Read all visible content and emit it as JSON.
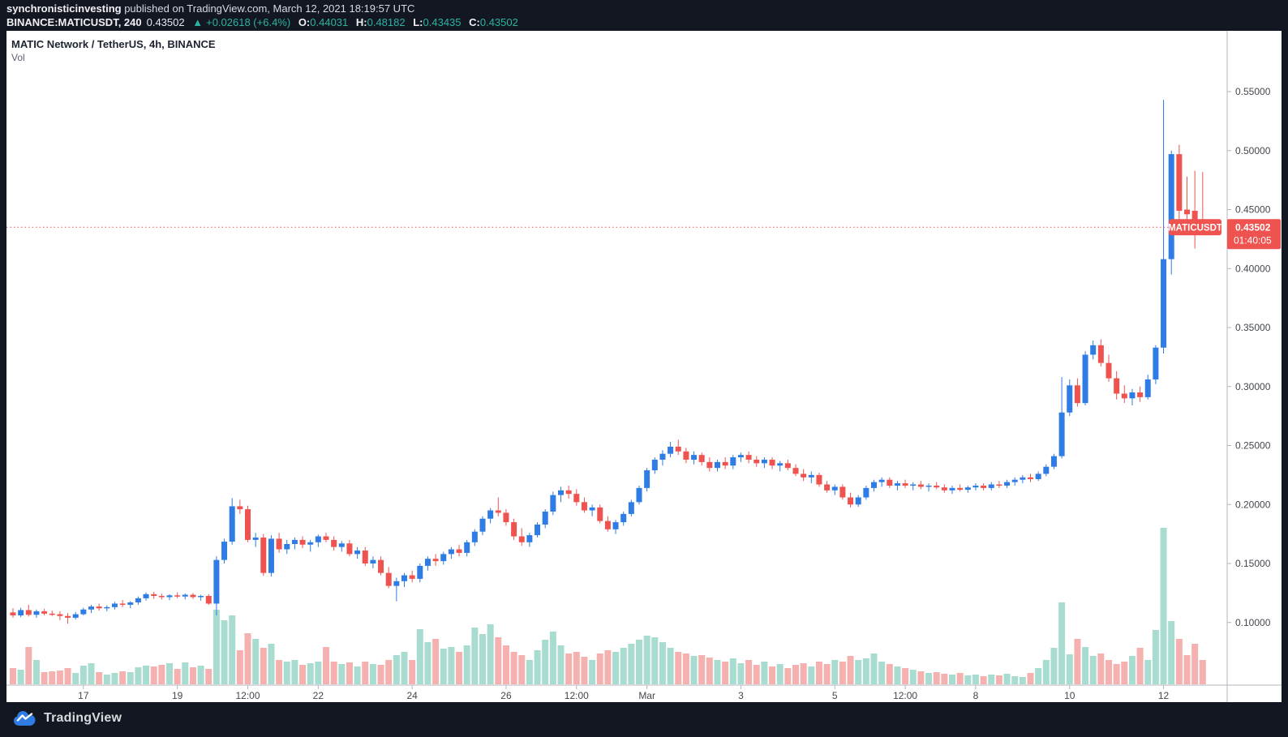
{
  "attribution": {
    "author": "synchronisticinvesting",
    "rest": " published on TradingView.com, March 12, 2021 18:19:57 UTC"
  },
  "symbol_bar": {
    "symbol": "BINANCE:MATICUSDT, 240",
    "last": "0.43502",
    "arrow": "▲",
    "change": "+0.02618 (+6.4%)",
    "o_label": "O:",
    "o": "0.44031",
    "h_label": "H:",
    "h": "0.48182",
    "l_label": "L:",
    "l": "0.43435",
    "c_label": "C:",
    "c": "0.43502"
  },
  "legend": {
    "title": "MATIC Network / TetherUS, 4h, BINANCE",
    "indicator": "Vol"
  },
  "price_label": {
    "symbol": "MATICUSDT",
    "price": "0.43502",
    "countdown": "01:40:05"
  },
  "footer": {
    "brand": "TradingView"
  },
  "colors": {
    "bg": "#131722",
    "panel": "#ffffff",
    "up": "#2e7ce4",
    "down": "#ef5350",
    "vol_up": "#a8dcd1",
    "vol_down": "#f5b1af",
    "accent_teal": "#2bb3a2",
    "axis_text": "#44474f",
    "axis_line": "#b2b5be",
    "last_price_line": "#ef5350",
    "label_bg": "#ef5350",
    "label_text": "#ffffff"
  },
  "chart_data": {
    "type": "candlestick",
    "symbol": "MATICUSDT",
    "exchange": "BINANCE",
    "interval": "4h",
    "legend_title": "MATIC Network / TetherUS, 4h, BINANCE",
    "grid": false,
    "last_price": 0.43502,
    "price_axis": {
      "side": "right",
      "format_decimals": 5,
      "ticks": [
        0.55,
        0.5,
        0.45,
        0.4,
        0.35,
        0.3,
        0.25,
        0.2,
        0.15,
        0.1
      ],
      "range_top": 0.57,
      "range_bottom": 0.065
    },
    "time_axis": {
      "labels": [
        {
          "text": "17",
          "i": 9
        },
        {
          "text": "19",
          "i": 21
        },
        {
          "text": "12:00",
          "i": 30
        },
        {
          "text": "22",
          "i": 39
        },
        {
          "text": "24",
          "i": 51
        },
        {
          "text": "26",
          "i": 63
        },
        {
          "text": "12:00",
          "i": 72
        },
        {
          "text": "Mar",
          "i": 81
        },
        {
          "text": "3",
          "i": 93
        },
        {
          "text": "5",
          "i": 105
        },
        {
          "text": "12:00",
          "i": 114
        },
        {
          "text": "8",
          "i": 123
        },
        {
          "text": "10",
          "i": 135
        },
        {
          "text": "12",
          "i": 147
        }
      ],
      "start": "Feb 15 2021 12:00 UTC",
      "end": "Mar 12 2021 16:00 UTC"
    },
    "volume_units": "relative",
    "candles_format": [
      "open",
      "high",
      "low",
      "close",
      "volume"
    ],
    "candles": [
      [
        0.1085,
        0.112,
        0.104,
        0.106,
        20
      ],
      [
        0.106,
        0.1125,
        0.1045,
        0.1105,
        18
      ],
      [
        0.1105,
        0.115,
        0.105,
        0.1065,
        46
      ],
      [
        0.1065,
        0.111,
        0.104,
        0.1095,
        30
      ],
      [
        0.1095,
        0.1115,
        0.106,
        0.1075,
        15
      ],
      [
        0.1075,
        0.11,
        0.1055,
        0.107,
        16
      ],
      [
        0.107,
        0.1095,
        0.102,
        0.1055,
        17
      ],
      [
        0.1055,
        0.108,
        0.099,
        0.104,
        20
      ],
      [
        0.104,
        0.109,
        0.1025,
        0.107,
        14
      ],
      [
        0.107,
        0.1125,
        0.106,
        0.111,
        23
      ],
      [
        0.111,
        0.115,
        0.108,
        0.1135,
        26
      ],
      [
        0.1135,
        0.116,
        0.11,
        0.112,
        15
      ],
      [
        0.112,
        0.1145,
        0.1095,
        0.113,
        12
      ],
      [
        0.113,
        0.1175,
        0.111,
        0.116,
        14
      ],
      [
        0.116,
        0.119,
        0.113,
        0.115,
        16
      ],
      [
        0.115,
        0.118,
        0.112,
        0.117,
        15
      ],
      [
        0.117,
        0.122,
        0.115,
        0.1205,
        21
      ],
      [
        0.1205,
        0.1255,
        0.1185,
        0.124,
        23
      ],
      [
        0.124,
        0.126,
        0.12,
        0.1225,
        22
      ],
      [
        0.1225,
        0.1245,
        0.1195,
        0.1215,
        24
      ],
      [
        0.1215,
        0.124,
        0.119,
        0.123,
        26
      ],
      [
        0.123,
        0.1255,
        0.1205,
        0.122,
        19
      ],
      [
        0.122,
        0.1245,
        0.1195,
        0.1235,
        27
      ],
      [
        0.1235,
        0.125,
        0.12,
        0.1215,
        21
      ],
      [
        0.1215,
        0.1235,
        0.1185,
        0.1225,
        23
      ],
      [
        0.1225,
        0.124,
        0.115,
        0.116,
        19
      ],
      [
        0.116,
        0.156,
        0.106,
        0.153,
        92
      ],
      [
        0.153,
        0.171,
        0.15,
        0.1685,
        79
      ],
      [
        0.1685,
        0.2055,
        0.166,
        0.1985,
        85
      ],
      [
        0.1985,
        0.204,
        0.192,
        0.196,
        42
      ],
      [
        0.196,
        0.199,
        0.168,
        0.17,
        63
      ],
      [
        0.17,
        0.176,
        0.164,
        0.172,
        56
      ],
      [
        0.172,
        0.175,
        0.1395,
        0.142,
        45
      ],
      [
        0.142,
        0.174,
        0.139,
        0.171,
        50
      ],
      [
        0.171,
        0.176,
        0.159,
        0.162,
        30
      ],
      [
        0.162,
        0.17,
        0.158,
        0.1665,
        28
      ],
      [
        0.1665,
        0.172,
        0.162,
        0.17,
        30
      ],
      [
        0.17,
        0.173,
        0.163,
        0.166,
        24
      ],
      [
        0.166,
        0.17,
        0.16,
        0.168,
        26
      ],
      [
        0.168,
        0.1745,
        0.164,
        0.173,
        28
      ],
      [
        0.173,
        0.176,
        0.168,
        0.17,
        46
      ],
      [
        0.17,
        0.173,
        0.161,
        0.164,
        28
      ],
      [
        0.164,
        0.169,
        0.16,
        0.167,
        25
      ],
      [
        0.167,
        0.17,
        0.156,
        0.158,
        27
      ],
      [
        0.158,
        0.164,
        0.154,
        0.161,
        22
      ],
      [
        0.161,
        0.164,
        0.148,
        0.15,
        28
      ],
      [
        0.15,
        0.156,
        0.146,
        0.153,
        25
      ],
      [
        0.153,
        0.156,
        0.14,
        0.142,
        24
      ],
      [
        0.142,
        0.147,
        0.129,
        0.131,
        30
      ],
      [
        0.131,
        0.138,
        0.118,
        0.135,
        36
      ],
      [
        0.135,
        0.142,
        0.13,
        0.14,
        40
      ],
      [
        0.14,
        0.144,
        0.134,
        0.137,
        30
      ],
      [
        0.137,
        0.15,
        0.134,
        0.148,
        68
      ],
      [
        0.148,
        0.156,
        0.144,
        0.154,
        52
      ],
      [
        0.154,
        0.158,
        0.148,
        0.152,
        56
      ],
      [
        0.152,
        0.16,
        0.149,
        0.158,
        44
      ],
      [
        0.158,
        0.164,
        0.154,
        0.162,
        46
      ],
      [
        0.162,
        0.166,
        0.156,
        0.159,
        40
      ],
      [
        0.159,
        0.17,
        0.156,
        0.168,
        48
      ],
      [
        0.168,
        0.179,
        0.165,
        0.177,
        70
      ],
      [
        0.177,
        0.19,
        0.174,
        0.188,
        62
      ],
      [
        0.188,
        0.197,
        0.184,
        0.195,
        74
      ],
      [
        0.195,
        0.206,
        0.19,
        0.193,
        58
      ],
      [
        0.193,
        0.196,
        0.182,
        0.185,
        48
      ],
      [
        0.185,
        0.188,
        0.17,
        0.173,
        40
      ],
      [
        0.173,
        0.18,
        0.165,
        0.168,
        36
      ],
      [
        0.168,
        0.176,
        0.164,
        0.174,
        30
      ],
      [
        0.174,
        0.185,
        0.172,
        0.183,
        42
      ],
      [
        0.183,
        0.196,
        0.18,
        0.194,
        55
      ],
      [
        0.194,
        0.211,
        0.191,
        0.208,
        65
      ],
      [
        0.208,
        0.215,
        0.202,
        0.212,
        48
      ],
      [
        0.212,
        0.216,
        0.205,
        0.209,
        38
      ],
      [
        0.209,
        0.213,
        0.199,
        0.202,
        40
      ],
      [
        0.202,
        0.206,
        0.193,
        0.195,
        34
      ],
      [
        0.195,
        0.2,
        0.19,
        0.1975,
        30
      ],
      [
        0.1975,
        0.2,
        0.184,
        0.186,
        38
      ],
      [
        0.186,
        0.19,
        0.177,
        0.179,
        42
      ],
      [
        0.179,
        0.187,
        0.175,
        0.185,
        40
      ],
      [
        0.185,
        0.194,
        0.182,
        0.192,
        45
      ],
      [
        0.192,
        0.204,
        0.19,
        0.202,
        50
      ],
      [
        0.202,
        0.216,
        0.2,
        0.214,
        55
      ],
      [
        0.214,
        0.231,
        0.211,
        0.229,
        60
      ],
      [
        0.229,
        0.24,
        0.226,
        0.238,
        58
      ],
      [
        0.238,
        0.246,
        0.233,
        0.243,
        52
      ],
      [
        0.243,
        0.253,
        0.24,
        0.249,
        45
      ],
      [
        0.249,
        0.255,
        0.242,
        0.245,
        40
      ],
      [
        0.245,
        0.248,
        0.235,
        0.238,
        38
      ],
      [
        0.238,
        0.245,
        0.234,
        0.242,
        35
      ],
      [
        0.242,
        0.244,
        0.233,
        0.236,
        36
      ],
      [
        0.236,
        0.24,
        0.228,
        0.231,
        33
      ],
      [
        0.231,
        0.238,
        0.228,
        0.236,
        30
      ],
      [
        0.236,
        0.24,
        0.23,
        0.233,
        28
      ],
      [
        0.233,
        0.242,
        0.23,
        0.24,
        32
      ],
      [
        0.24,
        0.244,
        0.236,
        0.242,
        26
      ],
      [
        0.242,
        0.245,
        0.235,
        0.238,
        30
      ],
      [
        0.238,
        0.241,
        0.232,
        0.235,
        24
      ],
      [
        0.235,
        0.24,
        0.231,
        0.238,
        28
      ],
      [
        0.238,
        0.24,
        0.23,
        0.233,
        22
      ],
      [
        0.233,
        0.237,
        0.228,
        0.235,
        25
      ],
      [
        0.235,
        0.238,
        0.229,
        0.231,
        20
      ],
      [
        0.231,
        0.234,
        0.224,
        0.226,
        24
      ],
      [
        0.226,
        0.23,
        0.22,
        0.223,
        26
      ],
      [
        0.223,
        0.228,
        0.218,
        0.225,
        22
      ],
      [
        0.225,
        0.227,
        0.215,
        0.217,
        28
      ],
      [
        0.217,
        0.22,
        0.21,
        0.212,
        25
      ],
      [
        0.212,
        0.217,
        0.208,
        0.215,
        30
      ],
      [
        0.215,
        0.217,
        0.204,
        0.206,
        28
      ],
      [
        0.206,
        0.21,
        0.1975,
        0.2,
        35
      ],
      [
        0.2,
        0.208,
        0.198,
        0.206,
        30
      ],
      [
        0.206,
        0.216,
        0.204,
        0.214,
        32
      ],
      [
        0.214,
        0.221,
        0.211,
        0.219,
        38
      ],
      [
        0.219,
        0.223,
        0.215,
        0.221,
        28
      ],
      [
        0.221,
        0.223,
        0.214,
        0.216,
        25
      ],
      [
        0.216,
        0.22,
        0.212,
        0.218,
        22
      ],
      [
        0.218,
        0.221,
        0.214,
        0.216,
        20
      ],
      [
        0.216,
        0.219,
        0.212,
        0.217,
        18
      ],
      [
        0.217,
        0.22,
        0.213,
        0.215,
        16
      ],
      [
        0.215,
        0.218,
        0.211,
        0.216,
        14
      ],
      [
        0.216,
        0.219,
        0.213,
        0.2145,
        15
      ],
      [
        0.2145,
        0.217,
        0.21,
        0.212,
        13
      ],
      [
        0.212,
        0.216,
        0.209,
        0.214,
        12
      ],
      [
        0.214,
        0.217,
        0.211,
        0.2125,
        14
      ],
      [
        0.2125,
        0.216,
        0.21,
        0.2145,
        11
      ],
      [
        0.2145,
        0.218,
        0.212,
        0.216,
        12
      ],
      [
        0.216,
        0.218,
        0.212,
        0.214,
        10
      ],
      [
        0.214,
        0.219,
        0.212,
        0.217,
        12
      ],
      [
        0.217,
        0.22,
        0.214,
        0.216,
        11
      ],
      [
        0.216,
        0.221,
        0.214,
        0.219,
        13
      ],
      [
        0.219,
        0.223,
        0.216,
        0.221,
        10
      ],
      [
        0.221,
        0.225,
        0.218,
        0.223,
        9
      ],
      [
        0.223,
        0.226,
        0.219,
        0.2215,
        14
      ],
      [
        0.2215,
        0.228,
        0.22,
        0.226,
        20
      ],
      [
        0.226,
        0.234,
        0.224,
        0.232,
        30
      ],
      [
        0.232,
        0.243,
        0.23,
        0.241,
        45
      ],
      [
        0.241,
        0.308,
        0.239,
        0.278,
        101
      ],
      [
        0.278,
        0.306,
        0.275,
        0.301,
        37
      ],
      [
        0.301,
        0.307,
        0.283,
        0.286,
        56
      ],
      [
        0.286,
        0.33,
        0.284,
        0.327,
        46
      ],
      [
        0.327,
        0.339,
        0.323,
        0.335,
        35
      ],
      [
        0.335,
        0.34,
        0.317,
        0.32,
        38
      ],
      [
        0.32,
        0.327,
        0.304,
        0.307,
        30
      ],
      [
        0.307,
        0.313,
        0.289,
        0.294,
        25
      ],
      [
        0.294,
        0.301,
        0.286,
        0.29,
        28
      ],
      [
        0.29,
        0.298,
        0.284,
        0.295,
        35
      ],
      [
        0.295,
        0.3,
        0.287,
        0.291,
        45
      ],
      [
        0.291,
        0.31,
        0.289,
        0.306,
        30
      ],
      [
        0.306,
        0.335,
        0.302,
        0.333,
        67
      ],
      [
        0.333,
        0.543,
        0.328,
        0.408,
        193
      ],
      [
        0.408,
        0.5,
        0.395,
        0.497,
        78
      ],
      [
        0.497,
        0.505,
        0.434,
        0.449,
        56
      ],
      [
        0.45,
        0.478,
        0.44,
        0.446,
        36
      ],
      [
        0.449,
        0.483,
        0.417,
        0.437,
        50
      ],
      [
        0.44031,
        0.48182,
        0.43435,
        0.43502,
        30
      ]
    ]
  }
}
